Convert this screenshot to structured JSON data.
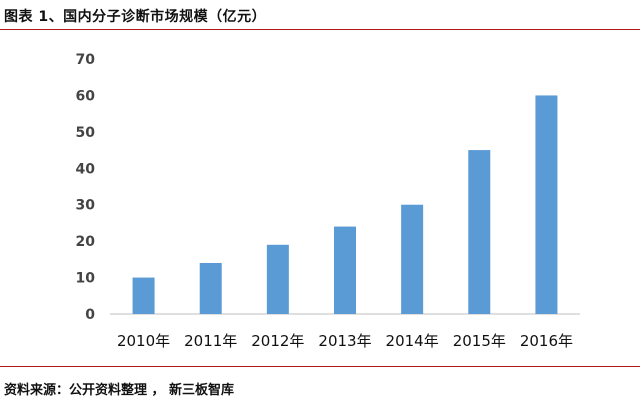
{
  "header": {
    "title": "图表 1、国内分子诊断市场规模（亿元）"
  },
  "footer": {
    "source": "资料来源：公开资料整理 ， 新三板智库"
  },
  "colors": {
    "bar": "#5b9bd5",
    "rule": "#b3131b",
    "axis": "#bfbfbf"
  },
  "chart_data": {
    "type": "bar",
    "title": "",
    "xlabel": "",
    "ylabel": "",
    "categories": [
      "2010年",
      "2011年",
      "2012年",
      "2013年",
      "2014年",
      "2015年",
      "2016年"
    ],
    "values": [
      10,
      14,
      19,
      24,
      30,
      45,
      60
    ],
    "ylim": [
      0,
      70
    ],
    "yticks": [
      0,
      10,
      20,
      30,
      40,
      50,
      60,
      70
    ],
    "grid": false,
    "legend": "none"
  }
}
